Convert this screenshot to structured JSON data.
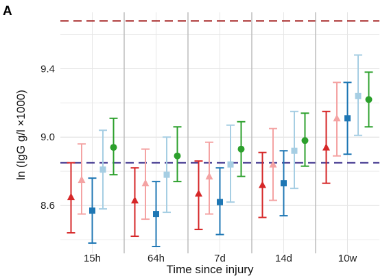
{
  "panel_label": "A",
  "chart_data": {
    "type": "scatter",
    "subtype": "point-range by group",
    "xlabel": "Time since injury",
    "ylabel": "ln (IgG g/l ×1000)",
    "ylim": [
      8.32,
      9.73
    ],
    "yticks": [
      8.6,
      9.0,
      9.4
    ],
    "ytick_labels": [
      "8.6",
      "9.0",
      "9.4"
    ],
    "categories": [
      "15h",
      "64h",
      "7d",
      "14d",
      "10w"
    ],
    "grid": true,
    "legend": "none",
    "reference_lines": [
      {
        "y": 9.68,
        "color": "#a01818",
        "style": "dashed"
      },
      {
        "y": 8.85,
        "color": "#3a2f8a",
        "style": "dashed"
      }
    ],
    "series": [
      {
        "color": "#d62728",
        "marker": "triangle",
        "values": [
          8.65,
          8.63,
          8.67,
          8.72,
          8.94
        ],
        "lower": [
          8.44,
          8.42,
          8.46,
          8.53,
          8.73
        ],
        "upper": [
          8.85,
          8.82,
          8.86,
          8.91,
          9.15
        ]
      },
      {
        "color": "#f4a3a3",
        "marker": "triangle",
        "values": [
          8.75,
          8.73,
          8.77,
          8.84,
          9.11
        ],
        "lower": [
          8.55,
          8.52,
          8.55,
          8.63,
          8.89
        ],
        "upper": [
          8.96,
          8.93,
          8.97,
          9.05,
          9.32
        ]
      },
      {
        "color": "#1f77b4",
        "marker": "square",
        "values": [
          8.57,
          8.55,
          8.62,
          8.73,
          9.11
        ],
        "lower": [
          8.38,
          8.36,
          8.43,
          8.54,
          8.9
        ],
        "upper": [
          8.76,
          8.74,
          8.82,
          8.92,
          9.32
        ]
      },
      {
        "color": "#a6cee3",
        "marker": "square",
        "values": [
          8.81,
          8.78,
          8.84,
          8.92,
          9.24
        ],
        "lower": [
          8.58,
          8.56,
          8.62,
          8.7,
          9.01
        ],
        "upper": [
          9.04,
          9.0,
          9.07,
          9.15,
          9.48
        ]
      },
      {
        "color": "#2ca02c",
        "marker": "circle",
        "values": [
          8.94,
          8.89,
          8.93,
          8.98,
          9.22
        ],
        "lower": [
          8.78,
          8.74,
          8.77,
          8.83,
          9.06
        ],
        "upper": [
          9.11,
          9.06,
          9.09,
          9.14,
          9.38
        ]
      }
    ]
  }
}
